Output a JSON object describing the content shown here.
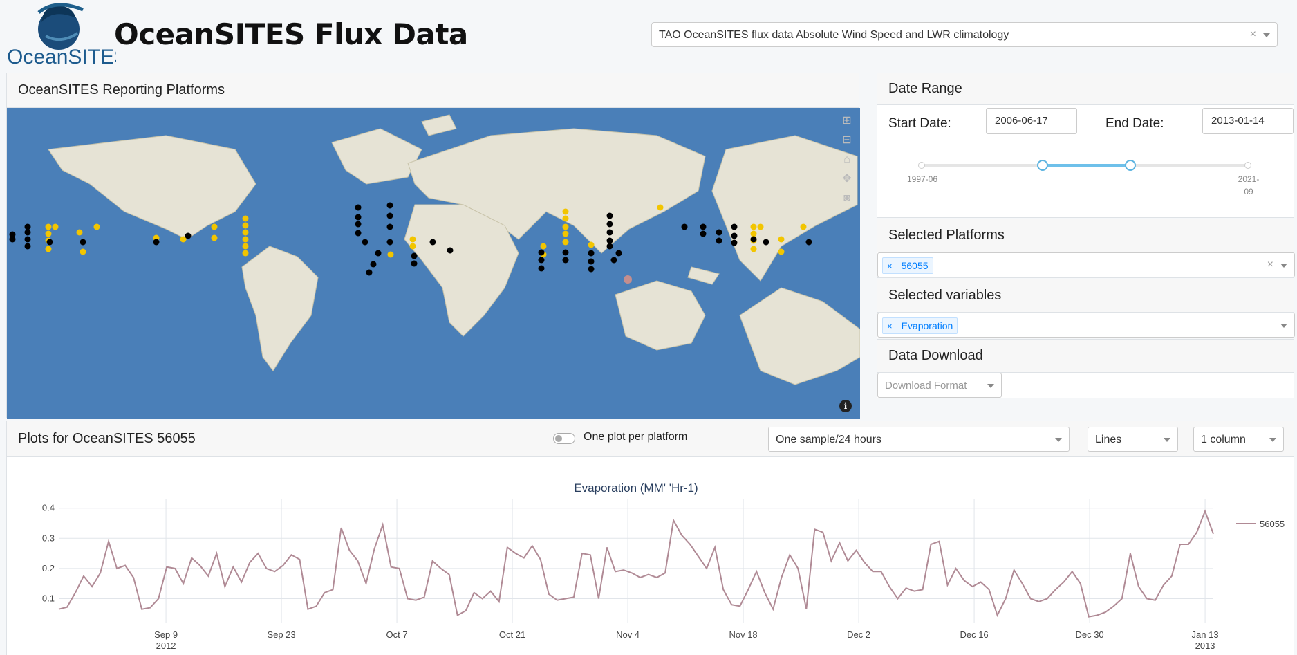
{
  "header": {
    "logo_text": "OceanSITES",
    "title": "OceanSITES Flux Data",
    "dataset_select": "TAO OceanSITES flux data Absolute Wind Speed and LWR climatology",
    "clear_glyph": "×"
  },
  "map_panel": {
    "title": "OceanSITES Reporting Platforms",
    "tools": [
      "zoom-in-icon",
      "zoom-out-icon",
      "home-icon",
      "pan-icon",
      "camera-icon"
    ],
    "info_glyph": "i",
    "colors": {
      "ocean": "#4a7fb8",
      "land": "#e6e3d5",
      "active": "#000000",
      "available": "#f2c500",
      "selected": "#c48e8e"
    }
  },
  "date_range": {
    "title": "Date Range",
    "start_label": "Start Date:",
    "start_value": "2006-06-17",
    "end_label": "End Date:",
    "end_value": "2013-01-14",
    "slider_min_label": "1997-06",
    "slider_max_label_1": "2021-",
    "slider_max_label_2": "09",
    "slider_start_fraction": 0.37,
    "slider_end_fraction": 0.64
  },
  "platforms": {
    "title": "Selected Platforms",
    "tag": "56055",
    "tag_remove": "×",
    "clear_glyph": "×"
  },
  "variables": {
    "title": "Selected variables",
    "tag": "Evaporation",
    "tag_remove": "×"
  },
  "download": {
    "title": "Data Download",
    "placeholder": "Download Format"
  },
  "plots": {
    "title": "Plots for OceanSITES 56055",
    "toggle_label": "One plot per platform",
    "sample_select": "One sample/24 hours",
    "style_select": "Lines",
    "layout_select": "1 column"
  },
  "chart_data": {
    "type": "line",
    "title": "Evaporation (MM' 'Hr-1)",
    "xlabel": "",
    "ylabel": "",
    "x_start": "2012-08-27",
    "x_end": "2013-01-14",
    "x_ticks": [
      "Sep 9",
      "Sep 23",
      "Oct 7",
      "Oct 21",
      "Nov 4",
      "Nov 18",
      "Dec 2",
      "Dec 16",
      "Dec 30",
      "Jan 13"
    ],
    "x_tick_dates": [
      "2012-09-09",
      "2012-09-23",
      "2012-10-07",
      "2012-10-21",
      "2012-11-04",
      "2012-11-18",
      "2012-12-02",
      "2012-12-16",
      "2012-12-30",
      "2013-01-13"
    ],
    "x_tick_year_first": "2012",
    "x_tick_year_last": "2013",
    "y_ticks": [
      "0.1",
      "0.2",
      "0.3",
      "0.4"
    ],
    "ylim": [
      0.03,
      0.42
    ],
    "series": [
      {
        "name": "56055",
        "color": "#b08a95",
        "values": [
          0.065,
          0.072,
          0.12,
          0.175,
          0.14,
          0.185,
          0.29,
          0.2,
          0.21,
          0.17,
          0.065,
          0.07,
          0.1,
          0.205,
          0.2,
          0.15,
          0.235,
          0.21,
          0.175,
          0.25,
          0.14,
          0.205,
          0.155,
          0.22,
          0.25,
          0.2,
          0.19,
          0.21,
          0.245,
          0.23,
          0.065,
          0.075,
          0.12,
          0.13,
          0.335,
          0.26,
          0.225,
          0.15,
          0.265,
          0.345,
          0.205,
          0.2,
          0.1,
          0.095,
          0.105,
          0.225,
          0.2,
          0.18,
          0.045,
          0.06,
          0.12,
          0.1,
          0.125,
          0.09,
          0.27,
          0.25,
          0.235,
          0.275,
          0.23,
          0.115,
          0.095,
          0.1,
          0.105,
          0.25,
          0.245,
          0.1,
          0.27,
          0.19,
          0.195,
          0.185,
          0.17,
          0.18,
          0.17,
          0.185,
          0.36,
          0.31,
          0.28,
          0.24,
          0.2,
          0.27,
          0.13,
          0.08,
          0.075,
          0.13,
          0.19,
          0.12,
          0.065,
          0.17,
          0.245,
          0.2,
          0.065,
          0.33,
          0.32,
          0.225,
          0.285,
          0.225,
          0.26,
          0.22,
          0.19,
          0.19,
          0.14,
          0.1,
          0.135,
          0.125,
          0.13,
          0.28,
          0.29,
          0.145,
          0.2,
          0.16,
          0.14,
          0.155,
          0.13,
          0.045,
          0.1,
          0.195,
          0.15,
          0.1,
          0.09,
          0.1,
          0.13,
          0.155,
          0.19,
          0.15,
          0.04,
          0.045,
          0.055,
          0.075,
          0.1,
          0.25,
          0.14,
          0.1,
          0.095,
          0.145,
          0.175,
          0.28,
          0.28,
          0.32,
          0.39,
          0.315
        ]
      }
    ]
  }
}
